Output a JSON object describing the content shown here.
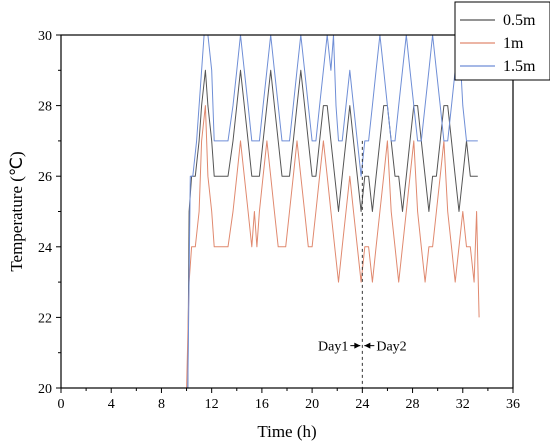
{
  "chart_data": {
    "type": "line",
    "xlabel": "Time (h)",
    "ylabel": "Temperature (℃)",
    "xlim": [
      0,
      36
    ],
    "ylim": [
      20,
      30
    ],
    "xticks": [
      0,
      4,
      8,
      12,
      16,
      20,
      24,
      28,
      32,
      36
    ],
    "yticks": [
      20,
      22,
      24,
      26,
      28,
      30
    ],
    "grid": false,
    "legend_position": "top-right",
    "series": [
      {
        "name": "0.5m",
        "color": "#555555",
        "x": [
          10.1,
          10.2,
          10.4,
          10.7,
          11.0,
          11.2,
          11.5,
          11.7,
          12.0,
          12.2,
          12.5,
          12.8,
          13.3,
          13.7,
          14.0,
          14.3,
          14.6,
          14.9,
          15.2,
          15.5,
          15.8,
          16.1,
          16.4,
          16.7,
          17.0,
          17.3,
          17.6,
          17.9,
          18.2,
          18.5,
          18.8,
          19.1,
          19.4,
          19.7,
          20.0,
          20.3,
          20.6,
          20.9,
          21.2,
          21.5,
          21.8,
          22.1,
          22.4,
          22.7,
          23.0,
          23.3,
          23.6,
          23.9,
          24.2,
          24.5,
          24.8,
          25.1,
          25.4,
          25.7,
          26.0,
          26.3,
          26.6,
          26.9,
          27.2,
          27.5,
          27.8,
          28.1,
          28.4,
          28.7,
          29.0,
          29.3,
          29.6,
          29.9,
          30.2,
          30.5,
          30.8,
          31.1,
          31.4,
          31.7,
          32.0,
          32.3,
          32.6,
          33.0,
          33.2
        ],
        "y": [
          20,
          25,
          26,
          26,
          27,
          28,
          29,
          28,
          27,
          26,
          26,
          26,
          26,
          27,
          28,
          29,
          28,
          27,
          26,
          26,
          26,
          27,
          28,
          29,
          28,
          27,
          26,
          26,
          26,
          27,
          28,
          29,
          28,
          27,
          26,
          26,
          27,
          28,
          28,
          27,
          26,
          25,
          26,
          27,
          28,
          27,
          26,
          25,
          26,
          26,
          25,
          26,
          27,
          28,
          28,
          27,
          26,
          26,
          25,
          26,
          27,
          28,
          28,
          27,
          26,
          25,
          26,
          26,
          27,
          28,
          28,
          27,
          26,
          25,
          26,
          27,
          26,
          26,
          26
        ]
      },
      {
        "name": "1m",
        "color": "#e0896f",
        "x": [
          10.0,
          10.2,
          10.4,
          10.7,
          11.0,
          11.2,
          11.5,
          11.7,
          12.0,
          12.2,
          12.5,
          12.8,
          13.3,
          13.7,
          14.0,
          14.3,
          14.6,
          14.9,
          15.2,
          15.4,
          15.6,
          15.8,
          16.1,
          16.4,
          16.7,
          17.0,
          17.3,
          17.6,
          17.9,
          18.2,
          18.5,
          18.8,
          19.1,
          19.4,
          19.7,
          20.0,
          20.3,
          20.6,
          20.9,
          21.2,
          21.5,
          21.8,
          22.1,
          22.4,
          22.7,
          23.0,
          23.3,
          23.6,
          23.9,
          24.2,
          24.5,
          24.8,
          25.1,
          25.4,
          25.7,
          26.0,
          26.3,
          26.6,
          26.9,
          27.2,
          27.5,
          27.8,
          28.1,
          28.4,
          28.7,
          29.0,
          29.3,
          29.6,
          29.9,
          30.2,
          30.5,
          30.8,
          31.1,
          31.4,
          31.7,
          32.0,
          32.3,
          32.6,
          32.9,
          33.1,
          33.3
        ],
        "y": [
          20,
          23,
          24,
          24,
          25,
          27,
          28,
          26,
          25,
          24,
          24,
          24,
          24,
          25,
          26,
          27,
          26,
          25,
          24,
          25,
          24,
          25,
          26,
          27,
          26,
          25,
          24,
          24,
          24,
          25,
          26,
          27,
          26,
          25,
          24,
          24,
          25,
          26,
          27,
          26,
          25,
          24,
          23,
          24,
          25,
          26,
          25,
          24,
          23,
          24,
          24,
          23,
          24,
          25,
          26,
          27,
          25,
          24,
          23,
          24,
          25,
          26,
          27,
          25,
          24,
          23,
          24,
          24,
          25,
          26,
          27,
          25,
          24,
          23,
          24,
          25,
          24,
          24,
          23,
          25,
          22
        ]
      },
      {
        "name": "1.5m",
        "color": "#6f8ed6",
        "x": [
          10.1,
          10.3,
          10.5,
          10.8,
          11.0,
          11.2,
          11.4,
          11.7,
          12.0,
          12.2,
          12.5,
          12.8,
          13.3,
          13.7,
          14.0,
          14.3,
          14.6,
          14.9,
          15.2,
          15.5,
          15.8,
          16.1,
          16.4,
          16.7,
          17.0,
          17.3,
          17.6,
          17.9,
          18.2,
          18.5,
          18.8,
          19.1,
          19.4,
          19.7,
          20.0,
          20.3,
          20.6,
          20.9,
          21.2,
          21.5,
          21.7,
          21.9,
          22.1,
          22.4,
          22.7,
          23.0,
          23.3,
          23.6,
          23.9,
          24.2,
          24.5,
          24.8,
          25.1,
          25.4,
          25.7,
          26.0,
          26.3,
          26.6,
          26.9,
          27.2,
          27.5,
          27.8,
          28.1,
          28.4,
          28.7,
          29.0,
          29.3,
          29.6,
          29.9,
          30.2,
          30.5,
          30.8,
          31.1,
          31.4,
          31.7,
          32.0,
          32.3,
          32.6,
          33.0,
          33.2
        ],
        "y": [
          20,
          26,
          26,
          27,
          28,
          29,
          30,
          30,
          29,
          27,
          27,
          27,
          27,
          28,
          29,
          30,
          29,
          28,
          27,
          27,
          27,
          28,
          29,
          30,
          29,
          28,
          27,
          27,
          27,
          28,
          29,
          30,
          29,
          28,
          27,
          27,
          28,
          29,
          30,
          29,
          30,
          28,
          27,
          27,
          28,
          29,
          28,
          27,
          26,
          27,
          27,
          28,
          29,
          30,
          29,
          28,
          27,
          27,
          28,
          29,
          30,
          29,
          28,
          27,
          27,
          28,
          29,
          30,
          29,
          28,
          27,
          27,
          28,
          29,
          30,
          28,
          27,
          27,
          27,
          27
        ]
      }
    ],
    "annotations": {
      "day1_label": "Day1",
      "day2_label": "Day2",
      "divider_x": 24
    }
  }
}
